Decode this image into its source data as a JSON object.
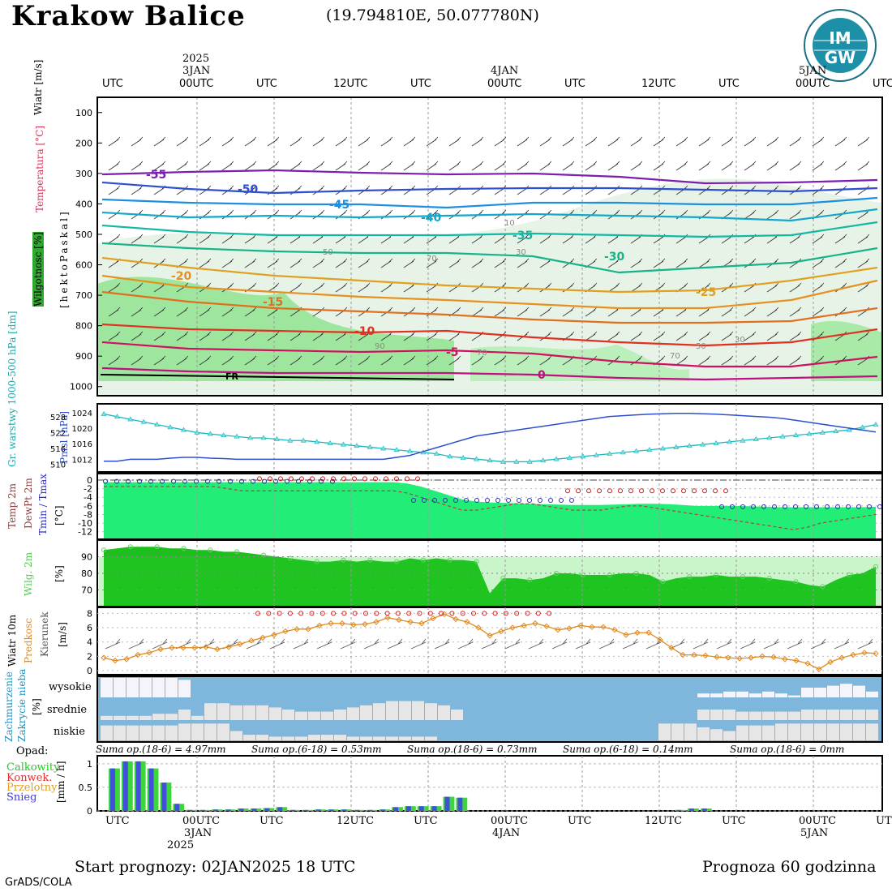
{
  "header": {
    "station": "Krakow Balice",
    "coords": "(19.794810E, 50.077780N)",
    "logo_text": "IMGW"
  },
  "time_axis": {
    "top_labels": [
      {
        "label": "UTC",
        "date": ""
      },
      {
        "label": "00UTC",
        "date": "3JAN",
        "year": "2025"
      },
      {
        "label": "UTC",
        "date": ""
      },
      {
        "label": "12UTC",
        "date": ""
      },
      {
        "label": "UTC",
        "date": ""
      },
      {
        "label": "00UTC",
        "date": "4JAN",
        "year": ""
      },
      {
        "label": "UTC",
        "date": ""
      },
      {
        "label": "12UTC",
        "date": ""
      },
      {
        "label": "UTC",
        "date": ""
      },
      {
        "label": "00UTC",
        "date": "5JAN",
        "year": ""
      },
      {
        "label": "UTC",
        "date": ""
      }
    ],
    "bottom_labels": [
      "UTC",
      "00UTC",
      "UTC",
      "12UTC",
      "UTC",
      "00UTC",
      "UTC",
      "12UTC",
      "UTC",
      "00UTC",
      "UTC"
    ],
    "bottom_dates": [
      "3JAN",
      "4JAN",
      "5JAN"
    ],
    "bottom_year": "2025"
  },
  "labels": {
    "wind": "Wiatr [m/s]",
    "temperature": "Temperatura [°C]",
    "humidity": "Wilgotnosc [%]",
    "pressure_axis": "[hektoPaskal]",
    "thickness": "Gr. warstwy 1000-500 hPa [dm]",
    "pmsl": "Pmsl [hPa]",
    "temp2m": "Temp 2m",
    "dewpt": "DewPt 2m",
    "tminmax": "Tmin / Tmax",
    "temp_unit": "[°C]",
    "rh2m": "Wilg. 2m",
    "rh_unit": "[%]",
    "wind10m": "Wiatr 10m",
    "wind_speed": "Predkosc",
    "wind_dir": "Kierunek",
    "wind_unit": "[m/s]",
    "clouds": "Zachmurzenie",
    "clouds2": "Zakrycie nieba",
    "cloud_unit": "[%]",
    "cloud_high": "wysokie",
    "cloud_mid": "srednie",
    "cloud_low": "niskie",
    "precip": "Opad:",
    "precip_total": "Calkowity",
    "precip_conv": "Konwek.",
    "precip_strat": "Przelotny",
    "precip_snow": "Snieg",
    "precip_unit": "[mm / h]",
    "fr_label": "FR"
  },
  "precip_sums": [
    "Suma op.(18-6) = 4.97mm",
    "Suma op.(6-18) = 0.53mm",
    "Suma op.(18-6) = 0.73mm",
    "Suma op.(6-18) = 0.14mm",
    "Suma op.(18-6) = 0mm"
  ],
  "footer": {
    "start": "Start prognozy: 02JAN2025 18 UTC",
    "range": "Prognoza 60 godzinna",
    "credit": "GrADS/COLA"
  },
  "chart_data": [
    {
      "type": "line",
      "name_in_chart": "upper_air_temperature_contours",
      "yaxis_ticks": [
        100,
        200,
        300,
        400,
        500,
        600,
        700,
        800,
        900,
        1000
      ],
      "contour_labels": [
        {
          "value": "-55",
          "color": "#7a1fb0"
        },
        {
          "value": "-50",
          "color": "#2d4fd0"
        },
        {
          "value": "-45",
          "color": "#1e8fe0"
        },
        {
          "value": "-40",
          "color": "#13a7c9"
        },
        {
          "value": "-35",
          "color": "#12b8a4"
        },
        {
          "value": "-30",
          "color": "#16b38a"
        },
        {
          "value": "-25",
          "color": "#e0a020"
        },
        {
          "value": "-20",
          "color": "#e69020"
        },
        {
          "value": "-15",
          "color": "#e07020"
        },
        {
          "value": "-10",
          "color": "#e03020"
        },
        {
          "value": "-5",
          "color": "#d01060"
        },
        {
          "value": "0",
          "color": "#c01080"
        }
      ],
      "humidity_labels": [
        "10",
        "30",
        "50",
        "70",
        "90"
      ]
    },
    {
      "type": "line",
      "name_in_chart": "thickness_and_pmsl",
      "thickness_ticks": [
        510,
        516,
        522,
        528
      ],
      "pmsl_ticks": [
        1012,
        1016,
        1020,
        1024
      ],
      "thickness": [
        529,
        528,
        527,
        526,
        525,
        524,
        523,
        522,
        521.5,
        521,
        520.5,
        520,
        520,
        519.5,
        519,
        519,
        518.5,
        518,
        517.5,
        517,
        516.5,
        516,
        515.5,
        515,
        514.5,
        514,
        513,
        512.5,
        512,
        511.5,
        511,
        511,
        511,
        511.5,
        512,
        512.5,
        513,
        513.5,
        514,
        514.5,
        515,
        515.5,
        516,
        516.5,
        517,
        517.5,
        518,
        518.5,
        519,
        519.5,
        520,
        520.5,
        521,
        521.5,
        522,
        522.5,
        523,
        524,
        525
      ],
      "pmsl": [
        1011.5,
        1011.5,
        1012,
        1012,
        1012,
        1012.3,
        1012.5,
        1012.5,
        1012.3,
        1012.2,
        1012,
        1012,
        1012,
        1012,
        1012,
        1012,
        1012,
        1012,
        1012,
        1012,
        1012,
        1012,
        1012.5,
        1013,
        1014,
        1015,
        1016,
        1017,
        1018,
        1018.5,
        1019,
        1019.5,
        1020,
        1020.5,
        1021,
        1021.5,
        1022,
        1022.5,
        1023,
        1023.2,
        1023.4,
        1023.6,
        1023.7,
        1023.8,
        1023.8,
        1023.7,
        1023.6,
        1023.4,
        1023.2,
        1023,
        1022.8,
        1022.5,
        1022,
        1021.5,
        1021,
        1020.5,
        1020,
        1019.5,
        1019
      ]
    },
    {
      "type": "area",
      "name_in_chart": "temp_2m",
      "yticks": [
        0,
        -2,
        -4,
        -6,
        -8,
        -10,
        -12
      ],
      "temp": [
        -0.5,
        -0.5,
        -0.5,
        -0.5,
        -0.5,
        -0.5,
        -0.5,
        -0.5,
        -0.5,
        -0.5,
        -0.5,
        -0.5,
        -0.5,
        -0.5,
        -0.5,
        -0.5,
        -0.5,
        -0.5,
        -0.5,
        -0.5,
        -0.5,
        -0.5,
        -0.8,
        -1.5,
        -2.5,
        -3.5,
        -4.5,
        -5,
        -5.2,
        -5.3,
        -5.4,
        -5.5,
        -5.6,
        -5.7,
        -5.8,
        -5.8,
        -5.8,
        -5.7,
        -5.6,
        -5.5,
        -5.5,
        -5.6,
        -5.8,
        -6,
        -6,
        -6,
        -6,
        -6.1,
        -6.2,
        -6.3,
        -6.3,
        -6.3,
        -6.3,
        -6.3,
        -6.3,
        -6.3,
        -6.2
      ],
      "dewpt": [
        -1.5,
        -1.5,
        -1.5,
        -1.5,
        -1.5,
        -1.5,
        -1.5,
        -1.5,
        -1.5,
        -2,
        -2.5,
        -2.5,
        -2.5,
        -2.5,
        -2.5,
        -2.5,
        -2.5,
        -2.5,
        -2.5,
        -2.5,
        -2.5,
        -2.5,
        -3,
        -4,
        -5,
        -6,
        -7,
        -7,
        -6.5,
        -6,
        -5.5,
        -5.5,
        -6,
        -6.5,
        -7,
        -7,
        -7,
        -6.5,
        -6,
        -6,
        -6.5,
        -7,
        -7.5,
        -8,
        -8.5,
        -9,
        -9.5,
        -10,
        -10.5,
        -11,
        -11.5,
        -11,
        -10,
        -9.5,
        -9,
        -8.5,
        -8
      ]
    },
    {
      "type": "area",
      "name_in_chart": "rh_2m",
      "yticks": [
        70,
        80,
        90
      ],
      "values": [
        94,
        95,
        96,
        96,
        96,
        95,
        95,
        94,
        94,
        93,
        93,
        92,
        91,
        90,
        89,
        88,
        87,
        87,
        88,
        87,
        88,
        87,
        87,
        89,
        88,
        89,
        88,
        88,
        87,
        68,
        77,
        77,
        76,
        77,
        80,
        80,
        79,
        79,
        79,
        80,
        80,
        79,
        75,
        77,
        78,
        78,
        79,
        78,
        78,
        78,
        77,
        76,
        75,
        73,
        72,
        76,
        79,
        80,
        84
      ]
    },
    {
      "type": "line",
      "name_in_chart": "wind_10m",
      "yticks": [
        0,
        2,
        4,
        6,
        8
      ],
      "speed": [
        1.8,
        1.4,
        1.6,
        2.2,
        2.5,
        3,
        3.2,
        3.2,
        3.2,
        3.3,
        3,
        3.3,
        3.7,
        4.2,
        4.6,
        5,
        5.5,
        5.8,
        5.8,
        6.3,
        6.6,
        6.6,
        6.4,
        6.5,
        6.8,
        7.4,
        7.1,
        6.8,
        6.6,
        7.3,
        7.9,
        7.2,
        6.8,
        6,
        4.9,
        5.5,
        6,
        6.3,
        6.6,
        6.2,
        5.7,
        5.9,
        6.3,
        6.1,
        6.1,
        5.7,
        5,
        5.3,
        5.3,
        4.3,
        3.2,
        2.2,
        2.2,
        2.1,
        1.9,
        1.8,
        1.7,
        1.8,
        2,
        1.9,
        1.6,
        1.4,
        1,
        0.2,
        1.2,
        1.8,
        2.2,
        2.5,
        2.4
      ]
    },
    {
      "type": "bar",
      "name_in_chart": "cloud_cover",
      "rows": [
        "wysokie",
        "srednie",
        "niskie"
      ]
    },
    {
      "type": "bar",
      "name_in_chart": "precipitation",
      "yticks": [
        "0",
        "0.5",
        "1"
      ],
      "values": [
        0.9,
        1.05,
        1.05,
        0.9,
        0.6,
        0.15,
        0.02,
        0.02,
        0.03,
        0.03,
        0.05,
        0.05,
        0.06,
        0.08,
        0.02,
        0.02,
        0.03,
        0.03,
        0.03,
        0.02,
        0.02,
        0.03,
        0.08,
        0.1,
        0.1,
        0.1,
        0.3,
        0.28,
        0,
        0,
        0,
        0,
        0,
        0,
        0,
        0,
        0,
        0,
        0,
        0,
        0,
        0,
        0,
        0,
        0.02,
        0.05,
        0.05,
        0,
        0,
        0,
        0,
        0,
        0,
        0,
        0,
        0,
        0,
        0,
        0,
        0
      ]
    }
  ]
}
